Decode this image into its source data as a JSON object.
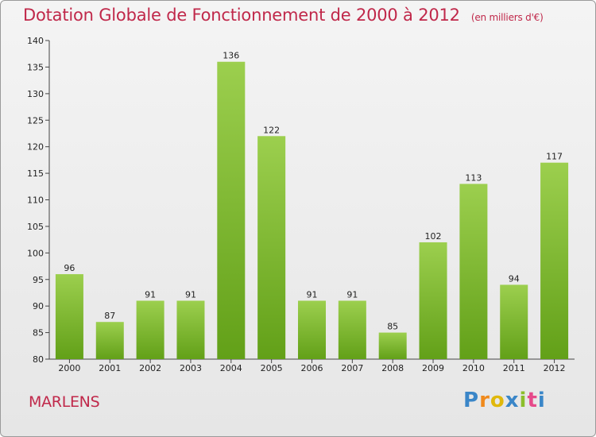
{
  "header": {
    "title": "Dotation Globale de Fonctionnement de 2000 à 2012",
    "unit": "(en milliers d'€)"
  },
  "footer": {
    "commune": "MARLENS",
    "logo_letters": [
      "P",
      "r",
      "o",
      "x",
      "i",
      "t",
      "i"
    ],
    "logo_colors": [
      "#3a86c8",
      "#f08a1c",
      "#e0b80c",
      "#3a86c8",
      "#8cbe2c",
      "#e64a8a",
      "#3a86c8"
    ]
  },
  "colors": {
    "bar_light": "#9ccf4e",
    "bar_dark": "#62a018",
    "accent": "#c0284a"
  },
  "chart_data": {
    "type": "bar",
    "title": "Dotation Globale de Fonctionnement de 2000 à 2012",
    "subtitle": "(en milliers d'€)",
    "categories": [
      "2000",
      "2001",
      "2002",
      "2003",
      "2004",
      "2005",
      "2006",
      "2007",
      "2008",
      "2009",
      "2010",
      "2011",
      "2012"
    ],
    "values": [
      96,
      87,
      91,
      91,
      136,
      122,
      91,
      91,
      85,
      102,
      113,
      94,
      117
    ],
    "ylim": [
      80,
      140
    ],
    "yticks": [
      80,
      85,
      90,
      95,
      100,
      105,
      110,
      115,
      120,
      125,
      130,
      135,
      140
    ],
    "grid": false,
    "xlabel": "",
    "ylabel": ""
  }
}
